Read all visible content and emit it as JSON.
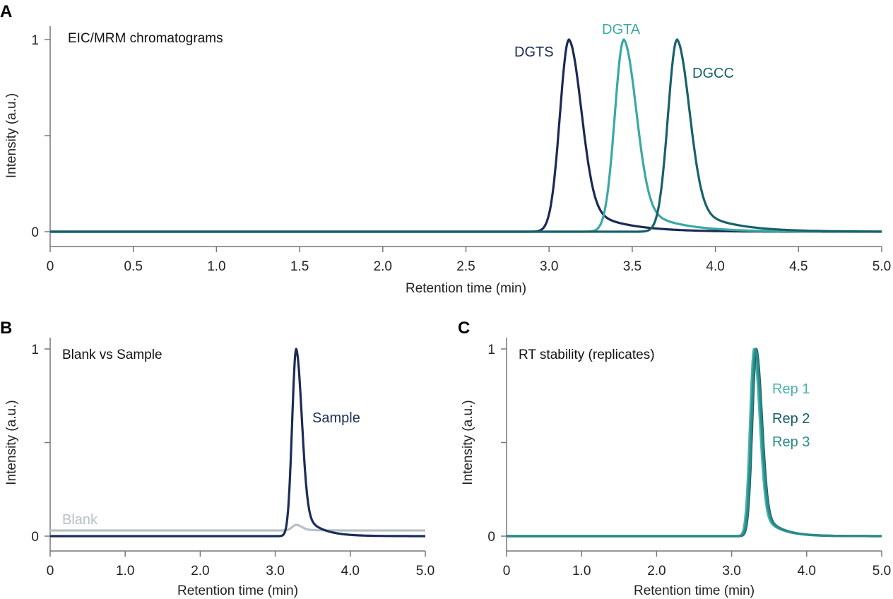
{
  "chart_data": [
    {
      "panel": "A",
      "type": "line",
      "title": "EIC/MRM chromatograms",
      "xlabel": "Retention time (min)",
      "ylabel": "Intensity (a.u.)",
      "xlim": [
        0,
        5.0
      ],
      "ylim": [
        0,
        1
      ],
      "xticks": [
        "0",
        "0.5",
        "1.0",
        "1.5",
        "2.0",
        "2.5",
        "3.0",
        "3.5",
        "4.0",
        "4.5",
        "5.0"
      ],
      "xtick_values": [
        0,
        0.5,
        1.0,
        1.5,
        2.0,
        2.5,
        3.0,
        3.5,
        4.0,
        4.5,
        5.0
      ],
      "yticks": [
        "0",
        "",
        "1"
      ],
      "ytick_values": [
        0,
        0.5,
        1
      ],
      "grid": false,
      "series": [
        {
          "name": "DGTS",
          "color": "#1b2a55",
          "peak_rt": 3.12,
          "peak_height": 1.0,
          "baseline": 0
        },
        {
          "name": "DGTA",
          "color": "#3aa9a1",
          "peak_rt": 3.45,
          "peak_height": 1.0,
          "baseline": 0
        },
        {
          "name": "DGCC",
          "color": "#17616b",
          "peak_rt": 3.77,
          "peak_height": 1.0,
          "baseline": 0
        }
      ]
    },
    {
      "panel": "B",
      "type": "line",
      "title": "Blank vs Sample",
      "xlabel": "Retention time (min)",
      "ylabel": "Intensity (a.u.)",
      "xlim": [
        0,
        5.0
      ],
      "ylim": [
        0,
        1
      ],
      "xticks": [
        "0",
        "1.0",
        "2.0",
        "3.0",
        "4.0",
        "5.0"
      ],
      "xtick_values": [
        0,
        1,
        2,
        3,
        4,
        5
      ],
      "yticks": [
        "0",
        "",
        "1"
      ],
      "ytick_values": [
        0,
        0.5,
        1
      ],
      "grid": false,
      "series": [
        {
          "name": "Blank",
          "color": "#b9c0c5",
          "peak_rt": 3.28,
          "peak_height": 0.03,
          "baseline": 0.03
        },
        {
          "name": "Sample",
          "color": "#1b2d57",
          "peak_rt": 3.28,
          "peak_height": 1.0,
          "baseline": 0
        }
      ]
    },
    {
      "panel": "C",
      "type": "line",
      "title": "RT stability (replicates)",
      "xlabel": "Retention time (min)",
      "ylabel": "Intensity (a.u.)",
      "xlim": [
        0,
        5.0
      ],
      "ylim": [
        0,
        1
      ],
      "xticks": [
        "0",
        "1.0",
        "2.0",
        "3.0",
        "4.0",
        "5.0"
      ],
      "xtick_values": [
        0,
        1,
        2,
        3,
        4,
        5
      ],
      "yticks": [
        "0",
        "",
        "1"
      ],
      "ytick_values": [
        0,
        0.5,
        1
      ],
      "grid": false,
      "series": [
        {
          "name": "Rep 1",
          "color": "#4bb3a9",
          "peak_rt": 3.3,
          "peak_height": 1.0,
          "baseline": 0
        },
        {
          "name": "Rep 2",
          "color": "#155e67",
          "peak_rt": 3.33,
          "peak_height": 1.0,
          "baseline": 0
        },
        {
          "name": "Rep 3",
          "color": "#2a8b89",
          "peak_rt": 3.32,
          "peak_height": 1.0,
          "baseline": 0
        }
      ]
    }
  ]
}
